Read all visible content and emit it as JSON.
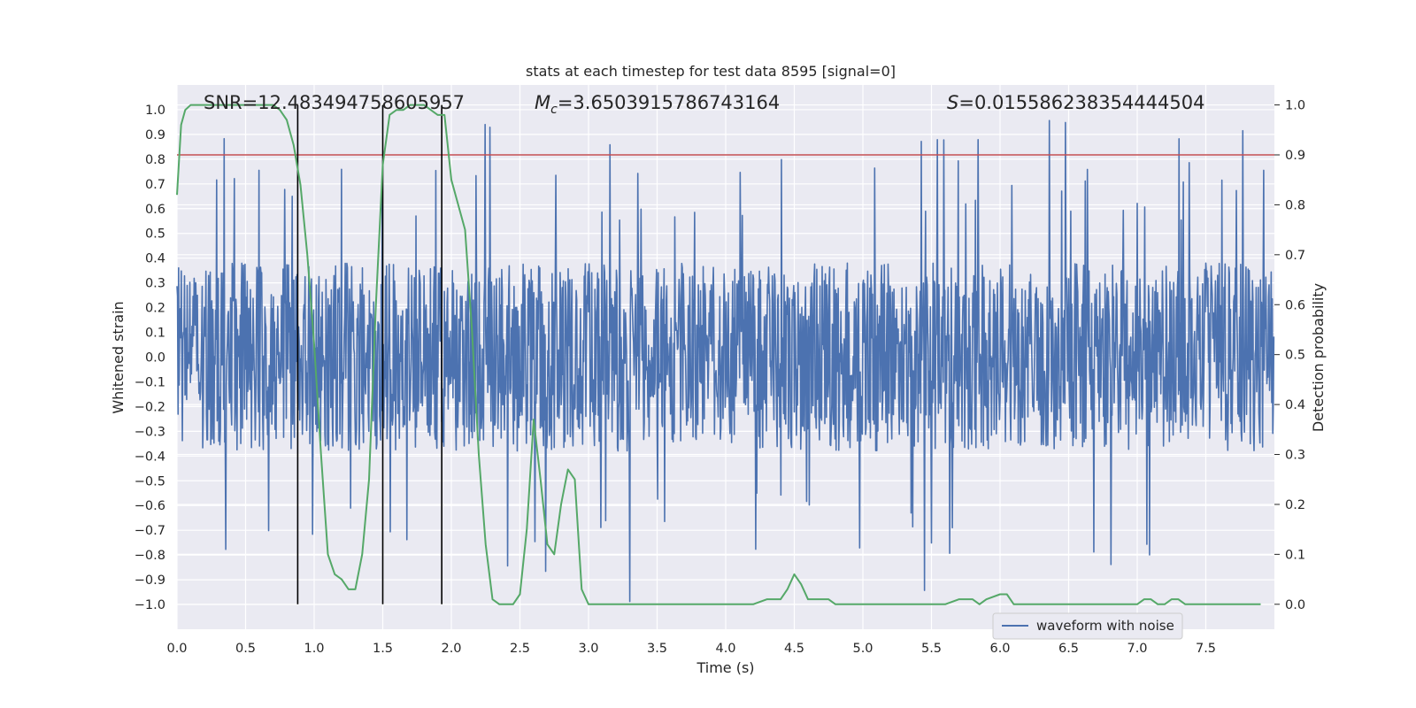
{
  "chart_data": {
    "type": "line",
    "title": "stats at each timestep for test data 8595 [signal=0]",
    "xlabel": "Time (s)",
    "ylabel": "Whitened strain",
    "ylabel_right": "Detection probability",
    "xlim": [
      0.0,
      8.0
    ],
    "ylim": [
      -1.1,
      1.1
    ],
    "ylim_right": [
      -0.05,
      1.04
    ],
    "x_ticks": [
      "0.0",
      "0.5",
      "1.0",
      "1.5",
      "2.0",
      "2.5",
      "3.0",
      "3.5",
      "4.0",
      "4.5",
      "5.0",
      "5.5",
      "6.0",
      "6.5",
      "7.0",
      "7.5"
    ],
    "y_ticks": [
      "1.0",
      "0.9",
      "0.8",
      "0.7",
      "0.6",
      "0.5",
      "0.4",
      "0.3",
      "0.2",
      "0.1",
      "0.0",
      "-0.1",
      "-0.2",
      "-0.3",
      "-0.4",
      "-0.5",
      "-0.6",
      "-0.7",
      "-0.8",
      "-0.9",
      "-1.0"
    ],
    "y_ticks_right": [
      "1.0",
      "0.9",
      "0.8",
      "0.7",
      "0.6",
      "0.5",
      "0.4",
      "0.3",
      "0.2",
      "0.1",
      "0.0"
    ],
    "grid": true,
    "stats": {
      "snr": "SNR=12.483494758605957",
      "mc_symbol": "M",
      "mc_sub": "c",
      "mc_value": "=3.6503915786743164",
      "s_symbol": "S",
      "s_value": "=0.015586238354444504"
    },
    "threshold": {
      "value": 0.9,
      "color": "#c44e52"
    },
    "vertical_markers": [
      0.88,
      1.5,
      1.93
    ],
    "legend": {
      "label": "waveform with noise",
      "location": "lower-right"
    },
    "series": [
      {
        "name": "waveform with noise",
        "axis": "left",
        "color": "#4c72b0",
        "duration_s": 8.0,
        "samples": 2048,
        "amplitude_typical": 0.38,
        "amplitude_peak_positive": 0.97,
        "amplitude_peak_negative": -1.0
      },
      {
        "name": "detection probability",
        "axis": "right",
        "color": "#55a868",
        "x": [
          0.0,
          0.03,
          0.06,
          0.1,
          0.2,
          0.3,
          0.4,
          0.5,
          0.6,
          0.7,
          0.75,
          0.8,
          0.85,
          0.9,
          0.95,
          1.0,
          1.05,
          1.1,
          1.15,
          1.2,
          1.25,
          1.3,
          1.35,
          1.4,
          1.45,
          1.5,
          1.55,
          1.6,
          1.65,
          1.7,
          1.75,
          1.8,
          1.85,
          1.9,
          1.95,
          2.0,
          2.05,
          2.1,
          2.15,
          2.2,
          2.25,
          2.3,
          2.35,
          2.4,
          2.45,
          2.5,
          2.55,
          2.6,
          2.65,
          2.7,
          2.75,
          2.8,
          2.85,
          2.9,
          2.95,
          3.0,
          3.05,
          3.1,
          3.5,
          3.8,
          4.0,
          4.1,
          4.2,
          4.3,
          4.4,
          4.45,
          4.5,
          4.55,
          4.6,
          4.7,
          4.75,
          4.8,
          5.0,
          5.5,
          5.6,
          5.7,
          5.8,
          5.85,
          5.9,
          6.0,
          6.05,
          6.1,
          6.15,
          6.2,
          6.5,
          7.0,
          7.05,
          7.1,
          7.15,
          7.2,
          7.25,
          7.3,
          7.35,
          7.4,
          7.45,
          7.5,
          7.9
        ],
        "y": [
          0.82,
          0.96,
          0.99,
          1.0,
          1.0,
          1.0,
          1.0,
          1.0,
          1.0,
          1.0,
          0.99,
          0.97,
          0.92,
          0.84,
          0.7,
          0.52,
          0.3,
          0.1,
          0.06,
          0.05,
          0.03,
          0.03,
          0.1,
          0.25,
          0.6,
          0.88,
          0.98,
          0.99,
          0.99,
          1.0,
          1.0,
          1.0,
          0.99,
          0.98,
          0.98,
          0.85,
          0.8,
          0.75,
          0.55,
          0.3,
          0.12,
          0.01,
          0.0,
          0.0,
          0.0,
          0.02,
          0.15,
          0.37,
          0.25,
          0.12,
          0.1,
          0.2,
          0.27,
          0.25,
          0.03,
          0.0,
          0.0,
          0.0,
          0.0,
          0.0,
          0.0,
          0.0,
          0.0,
          0.01,
          0.01,
          0.03,
          0.06,
          0.04,
          0.01,
          0.01,
          0.01,
          0.0,
          0.0,
          0.0,
          0.0,
          0.01,
          0.01,
          0.0,
          0.01,
          0.02,
          0.02,
          0.0,
          0.0,
          0.0,
          0.0,
          0.0,
          0.01,
          0.01,
          0.0,
          0.0,
          0.01,
          0.01,
          0.0,
          0.0,
          0.0,
          0.0,
          0.0
        ]
      }
    ]
  }
}
